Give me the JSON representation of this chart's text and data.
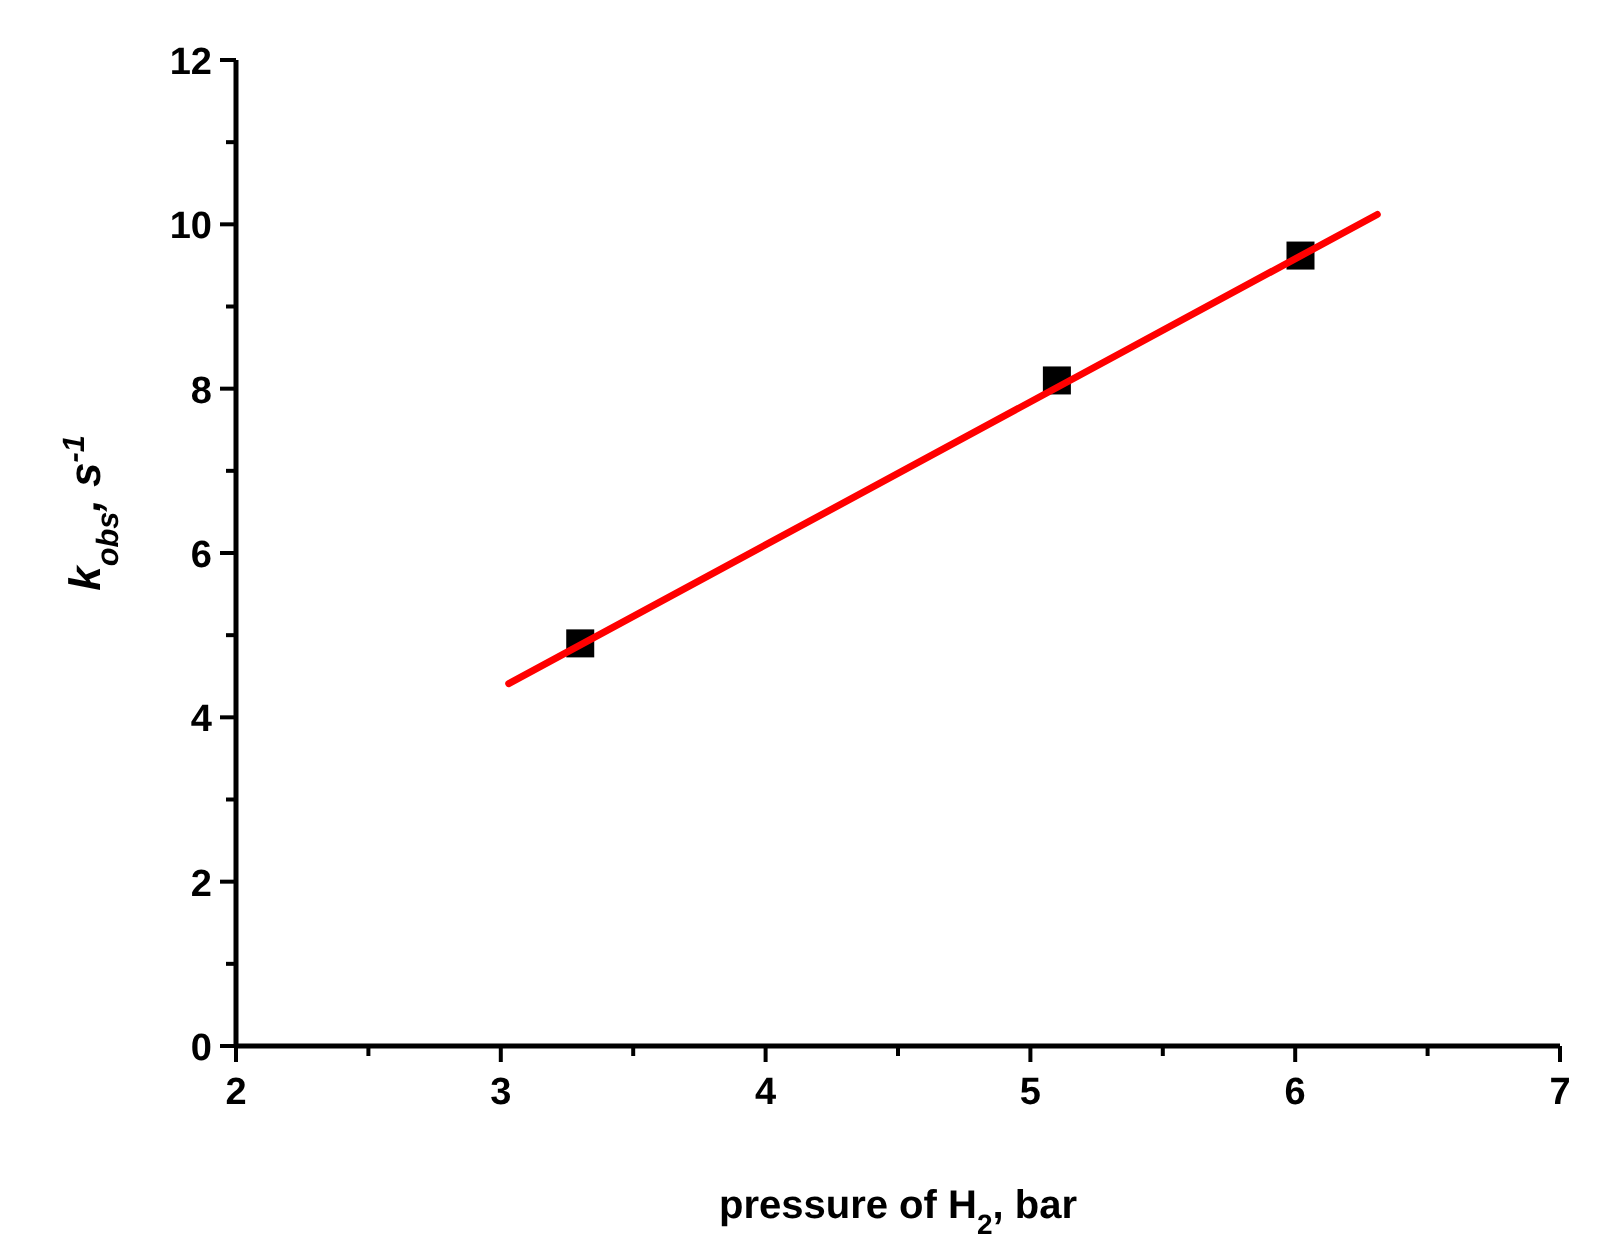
{
  "chart_data": {
    "type": "scatter",
    "xlabel": "pressure of H$_{2}$, bar",
    "ylabel": "k$_{obs}$, s$^{-1}$",
    "xlim": [
      2,
      7
    ],
    "ylim": [
      0,
      12
    ],
    "xticks": [
      2,
      {
        "value": 2.5,
        "label": null
      },
      3,
      {
        "value": 3.5,
        "label": null
      },
      4,
      {
        "value": 4.5,
        "label": null
      },
      5,
      {
        "value": 5.5,
        "label": null
      },
      6,
      {
        "value": 6.5,
        "label": null
      },
      7
    ],
    "yticks": [
      0,
      {
        "value": 1,
        "label": null
      },
      2,
      {
        "value": 3,
        "label": null
      },
      4,
      {
        "value": 5,
        "label": null
      },
      6,
      {
        "value": 7,
        "label": null
      },
      8,
      {
        "value": 9,
        "label": null
      },
      10,
      {
        "value": 11,
        "label": null
      },
      12
    ],
    "grid": false,
    "series": [
      {
        "color": "#000000",
        "marker": "square",
        "x": [
          3.3,
          5.1,
          6.02
        ],
        "values": [
          4.9,
          8.1,
          9.62
        ]
      },
      {
        "type": "line",
        "color": "#ff0000",
        "marker": "none",
        "line_style": "solid",
        "x": [
          3.03,
          6.31
        ],
        "values": [
          4.41,
          10.12
        ]
      }
    ]
  }
}
